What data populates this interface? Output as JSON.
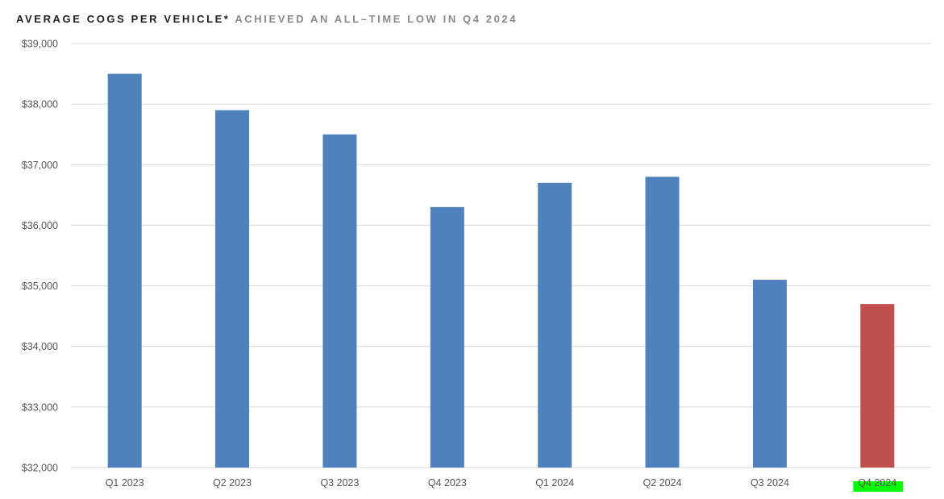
{
  "header": {
    "title_main": "AVERAGE COGS PER VEHICLE*",
    "title_sub": "ACHIEVED AN ALL–TIME LOW IN Q4 2024"
  },
  "colors": {
    "bar": "#4f81bd",
    "highlight_bar": "#c0504d",
    "highlight_label_bg": "#00ff00",
    "grid": "#d9d9d9"
  },
  "chart_data": {
    "type": "bar",
    "title": "AVERAGE COGS PER VEHICLE* ACHIEVED AN ALL–TIME LOW IN Q4 2024",
    "xlabel": "",
    "ylabel": "",
    "categories": [
      "Q1 2023",
      "Q2 2023",
      "Q3 2023",
      "Q4 2023",
      "Q1 2024",
      "Q2 2024",
      "Q3 2024",
      "Q4 2024"
    ],
    "values": [
      38500,
      37900,
      37500,
      36300,
      36700,
      36800,
      35100,
      34700
    ],
    "highlight_index": 7,
    "ylim": [
      32000,
      39000
    ],
    "yticks": [
      32000,
      33000,
      34000,
      35000,
      36000,
      37000,
      38000,
      39000
    ],
    "ytick_labels": [
      "$32,000",
      "$33,000",
      "$34,000",
      "$35,000",
      "$36,000",
      "$37,000",
      "$38,000",
      "$39,000"
    ],
    "grid": true,
    "legend": "none"
  }
}
